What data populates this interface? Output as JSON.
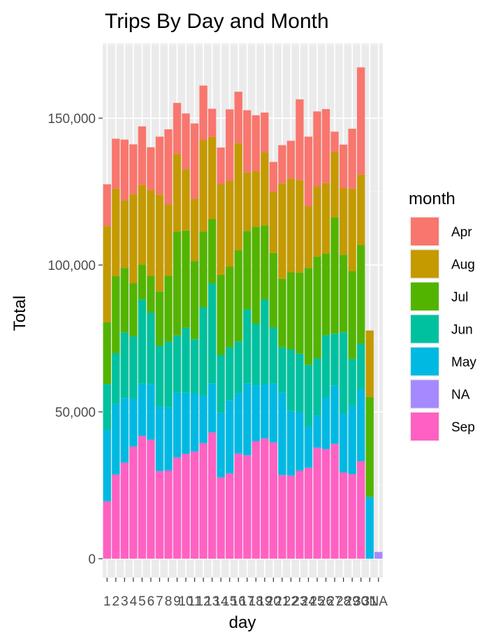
{
  "chart_data": {
    "type": "bar",
    "stacked": true,
    "title": "Trips By Day and Month",
    "xlabel": "day",
    "ylabel": "Total",
    "categories": [
      "1",
      "2",
      "3",
      "4",
      "5",
      "6",
      "7",
      "8",
      "9",
      "10",
      "11",
      "12",
      "13",
      "14",
      "15",
      "16",
      "17",
      "18",
      "19",
      "20",
      "21",
      "22",
      "23",
      "24",
      "25",
      "26",
      "27",
      "28",
      "29",
      "30",
      "31",
      "NA"
    ],
    "ylim": [
      0,
      172000
    ],
    "yticks": [
      0,
      50000,
      100000,
      150000
    ],
    "ytick_labels": [
      "0",
      "50,000",
      "100,000",
      "150,000"
    ],
    "grid": true,
    "legend": {
      "title": "month",
      "position": "right"
    },
    "series": [
      {
        "name": "Sep",
        "color": "#FF61C3",
        "values": [
          19500,
          28700,
          32700,
          38200,
          41800,
          40500,
          29800,
          30000,
          34500,
          35700,
          36500,
          39300,
          43000,
          27700,
          29000,
          35800,
          35200,
          40000,
          40900,
          39600,
          28500,
          28300,
          30000,
          31000,
          37800,
          37300,
          39100,
          29400,
          28800,
          33200,
          0,
          0
        ]
      },
      {
        "name": "May",
        "color": "#00B9E3",
        "values": [
          24300,
          24000,
          22000,
          16200,
          17800,
          19000,
          22000,
          21500,
          22000,
          20800,
          19700,
          16300,
          16700,
          22000,
          25000,
          20600,
          24500,
          19000,
          18500,
          20000,
          28000,
          22000,
          20000,
          14000,
          11000,
          17700,
          19900,
          20000,
          23200,
          24300,
          21000,
          0
        ]
      },
      {
        "name": "Jun",
        "color": "#00C19F",
        "values": [
          15700,
          17300,
          22400,
          21300,
          28700,
          24300,
          20700,
          22400,
          19500,
          22100,
          18500,
          30000,
          34000,
          19700,
          18000,
          17600,
          25200,
          21000,
          28800,
          19100,
          15500,
          21000,
          19800,
          21000,
          19400,
          21100,
          17600,
          27700,
          16000,
          15700,
          0,
          0
        ]
      },
      {
        "name": "Jul",
        "color": "#53B400",
        "values": [
          21000,
          26200,
          21900,
          18100,
          11900,
          12500,
          18500,
          22400,
          35400,
          33100,
          26700,
          25800,
          21900,
          27300,
          27400,
          31000,
          26700,
          33000,
          25300,
          25400,
          23300,
          26200,
          27600,
          33000,
          34700,
          27800,
          39600,
          26400,
          30000,
          33600,
          34000,
          0
        ]
      },
      {
        "name": "Aug",
        "color": "#C49A00",
        "values": [
          32800,
          29800,
          23000,
          30400,
          27100,
          29200,
          33000,
          24300,
          26500,
          20900,
          21100,
          31100,
          28000,
          30800,
          29300,
          36500,
          19900,
          19000,
          25000,
          20900,
          32500,
          32000,
          31500,
          21000,
          23900,
          24000,
          22400,
          22700,
          28000,
          24000,
          22700,
          0
        ]
      },
      {
        "name": "NA",
        "color": "#A58AFF",
        "values": [
          0,
          0,
          0,
          0,
          0,
          0,
          0,
          0,
          0,
          0,
          0,
          0,
          0,
          0,
          0,
          0,
          0,
          0,
          0,
          0,
          0,
          0,
          0,
          0,
          0,
          0,
          0,
          0,
          0,
          0,
          0,
          2300
        ]
      },
      {
        "name": "Apr",
        "color": "#F8766D",
        "values": [
          14200,
          17000,
          20700,
          16900,
          19900,
          14600,
          19700,
          25600,
          17300,
          19000,
          25700,
          18600,
          9600,
          12500,
          24300,
          17500,
          21200,
          19000,
          13400,
          10100,
          13000,
          12800,
          27500,
          23700,
          25500,
          25200,
          6800,
          14800,
          20400,
          36500,
          0,
          0
        ]
      }
    ],
    "legend_order": [
      "Apr",
      "Aug",
      "Jul",
      "Jun",
      "May",
      "NA",
      "Sep"
    ]
  }
}
